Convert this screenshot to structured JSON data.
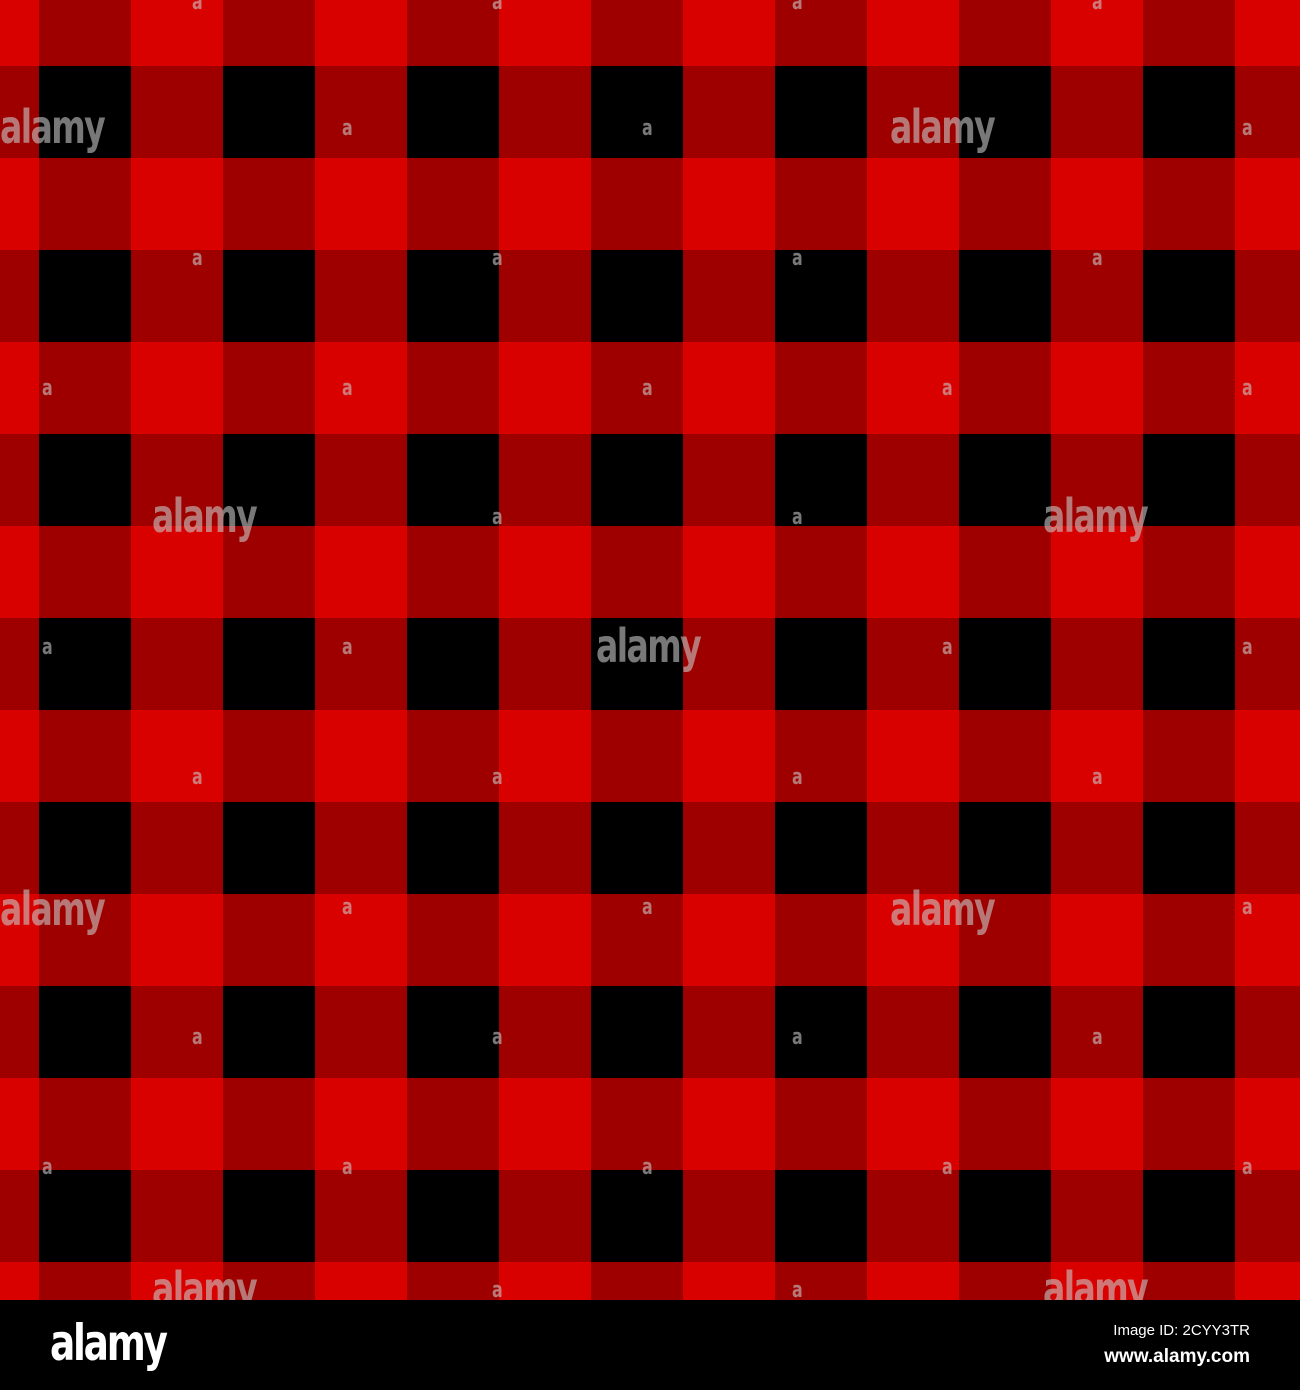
{
  "pattern": {
    "name": "buffalo plaid",
    "colors": {
      "bright_red": "#d90000",
      "dark_red": "#9e0000",
      "black": "#000000"
    }
  },
  "watermark": {
    "text": "alamy",
    "small_text": "a"
  },
  "footer": {
    "logo": "alamy",
    "image_id": "Image ID: 2CYY3TR",
    "site": "www.alamy.com"
  }
}
